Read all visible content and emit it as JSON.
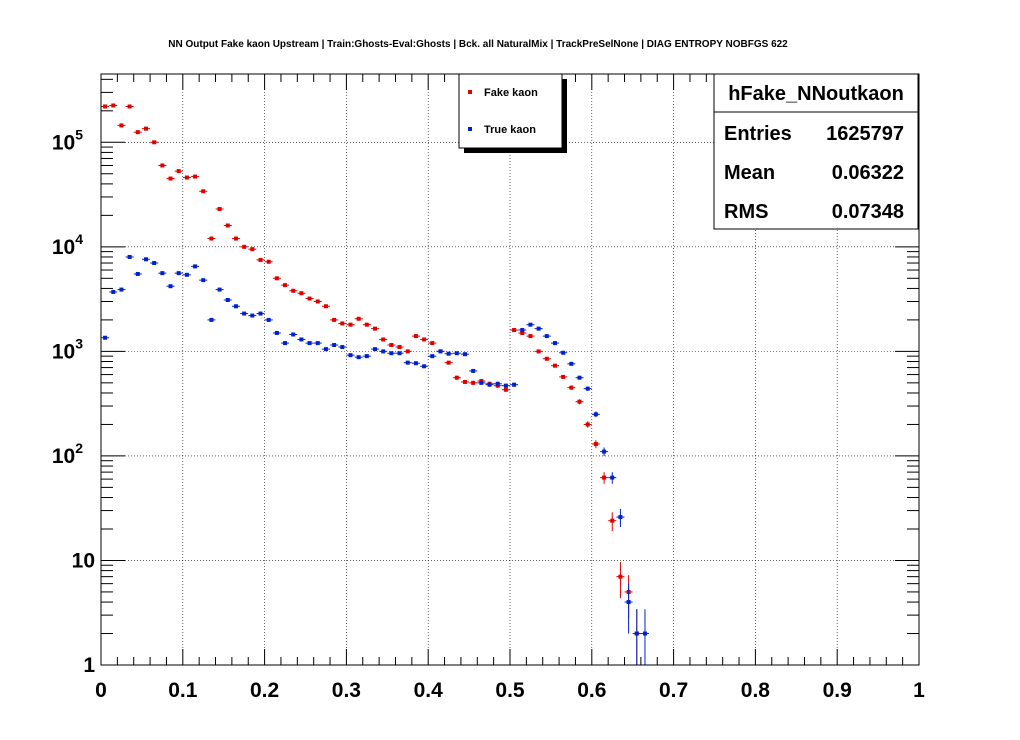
{
  "chart_data": {
    "type": "scatter",
    "title": "NN Output Fake kaon Upstream | Train:Ghosts-Eval:Ghosts | Bck. all NaturalMix | TrackPreSelNone | DIAG ENTROPY NOBFGS 622",
    "xlabel": "",
    "ylabel": "",
    "xlim": [
      0,
      1
    ],
    "ylim": [
      1,
      450000
    ],
    "yscale": "log",
    "grid": true,
    "legend_position": "top-center",
    "x_ticks": [
      "0",
      "0.1",
      "0.2",
      "0.3",
      "0.4",
      "0.5",
      "0.6",
      "0.7",
      "0.8",
      "0.9",
      "1"
    ],
    "y_ticks": [
      {
        "value": 1,
        "base": "1",
        "exp": ""
      },
      {
        "value": 10,
        "base": "10",
        "exp": ""
      },
      {
        "value": 100,
        "base": "10",
        "exp": "2"
      },
      {
        "value": 1000,
        "base": "10",
        "exp": "3"
      },
      {
        "value": 10000,
        "base": "10",
        "exp": "4"
      },
      {
        "value": 100000,
        "base": "10",
        "exp": "5"
      }
    ],
    "series": [
      {
        "name": "Fake kaon",
        "color": "#e00000",
        "x": [
          0.005,
          0.015,
          0.025,
          0.035,
          0.045,
          0.055,
          0.065,
          0.075,
          0.085,
          0.095,
          0.105,
          0.115,
          0.125,
          0.135,
          0.145,
          0.155,
          0.165,
          0.175,
          0.185,
          0.195,
          0.205,
          0.215,
          0.225,
          0.235,
          0.245,
          0.255,
          0.265,
          0.275,
          0.285,
          0.295,
          0.305,
          0.315,
          0.325,
          0.335,
          0.345,
          0.355,
          0.365,
          0.375,
          0.385,
          0.395,
          0.405,
          0.415,
          0.425,
          0.435,
          0.445,
          0.455,
          0.465,
          0.475,
          0.485,
          0.495,
          0.505,
          0.515,
          0.525,
          0.535,
          0.545,
          0.555,
          0.565,
          0.575,
          0.585,
          0.595,
          0.605,
          0.615,
          0.625,
          0.635,
          0.645,
          0.655
        ],
        "y": [
          220000,
          225000,
          145000,
          220000,
          125000,
          135000,
          100000,
          60000,
          45000,
          53000,
          46000,
          47000,
          34000,
          12000,
          23000,
          16000,
          12000,
          10000,
          9500,
          7500,
          7200,
          5000,
          4300,
          3800,
          3600,
          3200,
          3000,
          2700,
          2000,
          1850,
          1800,
          2050,
          1800,
          1650,
          1300,
          1150,
          1100,
          1000,
          1400,
          1300,
          1200,
          1000,
          780,
          560,
          510,
          500,
          520,
          490,
          470,
          430,
          1600,
          1500,
          1400,
          1000,
          850,
          730,
          570,
          450,
          330,
          200,
          130,
          62,
          24,
          7,
          5,
          2
        ]
      },
      {
        "name": "True kaon",
        "color": "#0022cc",
        "x": [
          0.005,
          0.015,
          0.025,
          0.035,
          0.045,
          0.055,
          0.065,
          0.075,
          0.085,
          0.095,
          0.105,
          0.115,
          0.125,
          0.135,
          0.145,
          0.155,
          0.165,
          0.175,
          0.185,
          0.195,
          0.205,
          0.215,
          0.225,
          0.235,
          0.245,
          0.255,
          0.265,
          0.275,
          0.285,
          0.295,
          0.305,
          0.315,
          0.325,
          0.335,
          0.345,
          0.355,
          0.365,
          0.375,
          0.385,
          0.395,
          0.405,
          0.415,
          0.425,
          0.435,
          0.445,
          0.455,
          0.465,
          0.475,
          0.485,
          0.495,
          0.505,
          0.515,
          0.525,
          0.535,
          0.545,
          0.555,
          0.565,
          0.575,
          0.585,
          0.595,
          0.605,
          0.615,
          0.625,
          0.635,
          0.645,
          0.655,
          0.665
        ],
        "y": [
          1350,
          3700,
          3900,
          8000,
          5500,
          7600,
          7000,
          5600,
          4200,
          5600,
          5400,
          6500,
          4800,
          2000,
          3900,
          3100,
          2700,
          2300,
          2200,
          2300,
          2000,
          1500,
          1200,
          1450,
          1300,
          1200,
          1200,
          1050,
          1150,
          1100,
          920,
          880,
          900,
          1050,
          1000,
          960,
          960,
          780,
          770,
          720,
          900,
          1000,
          950,
          960,
          940,
          650,
          500,
          480,
          490,
          470,
          480,
          1600,
          1800,
          1650,
          1400,
          1200,
          970,
          760,
          560,
          440,
          250,
          110,
          62,
          26,
          4,
          2,
          2
        ]
      }
    ],
    "stats_box": {
      "title": "hFake_NNoutkaon",
      "entries_label": "Entries",
      "entries_value": "1625797",
      "mean_label": "Mean",
      "mean_value": "0.06322",
      "rms_label": "RMS",
      "rms_value": "0.07348"
    }
  },
  "colors": {
    "frame": "#000000",
    "grid": "#000000",
    "background": "#ffffff"
  }
}
